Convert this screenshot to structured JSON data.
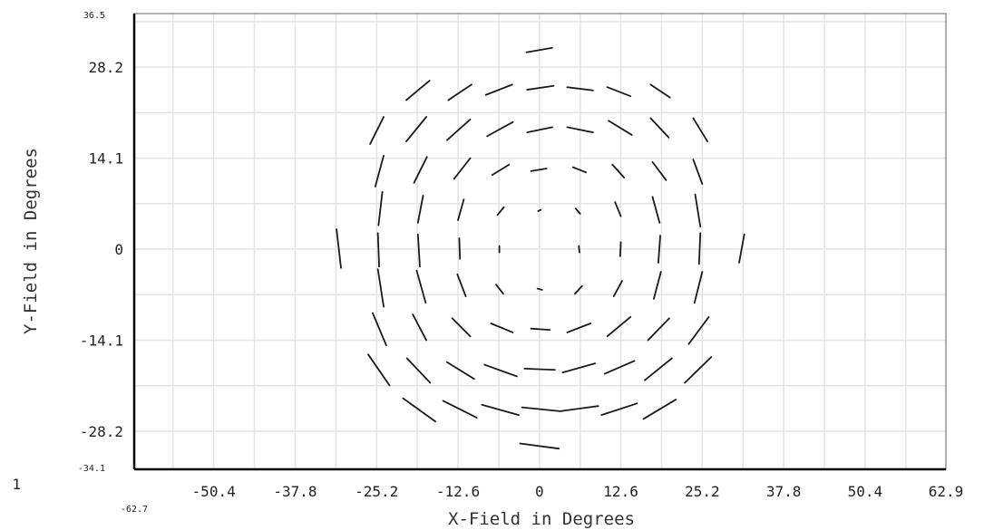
{
  "chart_data": {
    "type": "scatter",
    "mark": "field-orientation-segments",
    "title": "",
    "xlabel": "X-Field in Degrees",
    "ylabel": "Y-Field in Degrees",
    "xlim": [
      -62.7,
      62.9
    ],
    "ylim": [
      -34.1,
      36.5
    ],
    "x_ticks": [
      -50.4,
      -37.8,
      -25.2,
      -12.6,
      0,
      12.6,
      25.2,
      37.8,
      50.4,
      62.9
    ],
    "x_tick_labels": [
      "-50.4",
      "-37.8",
      "-25.2",
      "-12.6",
      "0",
      "12.6",
      "25.2",
      "37.8",
      "50.4",
      "62.9"
    ],
    "y_ticks": [
      28.2,
      14.1,
      0,
      -14.1,
      -28.2
    ],
    "y_tick_labels": [
      "28.2",
      "14.1",
      "0",
      "-14.1",
      "-28.2"
    ],
    "x_min_label": "-62.7",
    "x_cut_label": "1",
    "y_max_label": "36.5",
    "y_min_label": "-34.1",
    "grid": true,
    "segments": [
      {
        "x1": -2.0,
        "y1": 30.5,
        "x2": 2.0,
        "y2": 31.2
      },
      {
        "x1": -20.6,
        "y1": 23.1,
        "x2": -17.0,
        "y2": 26.1
      },
      {
        "x1": -14.1,
        "y1": 23.1,
        "x2": -10.5,
        "y2": 25.5
      },
      {
        "x1": -8.3,
        "y1": 23.9,
        "x2": -4.2,
        "y2": 25.5
      },
      {
        "x1": -1.9,
        "y1": 24.7,
        "x2": 2.2,
        "y2": 25.3
      },
      {
        "x1": 4.3,
        "y1": 25.1,
        "x2": 8.3,
        "y2": 24.6
      },
      {
        "x1": 10.5,
        "y1": 25.1,
        "x2": 14.1,
        "y2": 23.7
      },
      {
        "x1": 17.2,
        "y1": 25.5,
        "x2": 20.2,
        "y2": 23.5
      },
      {
        "x1": -26.2,
        "y1": 16.3,
        "x2": -24.1,
        "y2": 20.5
      },
      {
        "x1": -20.6,
        "y1": 16.7,
        "x2": -17.5,
        "y2": 20.5
      },
      {
        "x1": -14.3,
        "y1": 16.9,
        "x2": -10.7,
        "y2": 20.1
      },
      {
        "x1": -8.1,
        "y1": 17.5,
        "x2": -4.1,
        "y2": 19.7
      },
      {
        "x1": -1.9,
        "y1": 18.1,
        "x2": 2.0,
        "y2": 18.9
      },
      {
        "x1": 4.3,
        "y1": 18.9,
        "x2": 8.3,
        "y2": 18.1
      },
      {
        "x1": 10.7,
        "y1": 19.9,
        "x2": 14.3,
        "y2": 17.7
      },
      {
        "x1": 17.2,
        "y1": 20.3,
        "x2": 20.0,
        "y2": 17.3
      },
      {
        "x1": 23.8,
        "y1": 20.3,
        "x2": 26.0,
        "y2": 16.7
      },
      {
        "x1": -25.4,
        "y1": 9.7,
        "x2": -24.1,
        "y2": 14.5
      },
      {
        "x1": -19.4,
        "y1": 10.3,
        "x2": -17.4,
        "y2": 14.3
      },
      {
        "x1": -13.2,
        "y1": 10.9,
        "x2": -10.7,
        "y2": 14.1
      },
      {
        "x1": -7.3,
        "y1": 11.5,
        "x2": -4.7,
        "y2": 13.1
      },
      {
        "x1": -1.3,
        "y1": 12.1,
        "x2": 1.1,
        "y2": 12.5
      },
      {
        "x1": 5.2,
        "y1": 12.7,
        "x2": 7.2,
        "y2": 11.9
      },
      {
        "x1": 11.3,
        "y1": 13.1,
        "x2": 13.1,
        "y2": 11.1
      },
      {
        "x1": 17.5,
        "y1": 13.5,
        "x2": 19.6,
        "y2": 10.7
      },
      {
        "x1": 23.8,
        "y1": 13.9,
        "x2": 25.2,
        "y2": 10.1
      },
      {
        "x1": -24.9,
        "y1": 3.7,
        "x2": -24.3,
        "y2": 8.9
      },
      {
        "x1": -18.8,
        "y1": 4.1,
        "x2": -18.0,
        "y2": 8.3
      },
      {
        "x1": -12.6,
        "y1": 4.5,
        "x2": -11.7,
        "y2": 7.7
      },
      {
        "x1": -6.5,
        "y1": 5.3,
        "x2": -5.5,
        "y2": 6.5
      },
      {
        "x1": -0.2,
        "y1": 5.9,
        "x2": 0.2,
        "y2": 6.1
      },
      {
        "x1": 5.6,
        "y1": 6.3,
        "x2": 6.3,
        "y2": 5.5
      },
      {
        "x1": 11.7,
        "y1": 7.3,
        "x2": 12.6,
        "y2": 5.1
      },
      {
        "x1": 17.5,
        "y1": 8.1,
        "x2": 18.6,
        "y2": 4.1
      },
      {
        "x1": 24.1,
        "y1": 8.5,
        "x2": 24.9,
        "y2": 3.5
      },
      {
        "x1": -31.4,
        "y1": 3.1,
        "x2": -30.7,
        "y2": -2.9
      },
      {
        "x1": -25.0,
        "y1": 2.5,
        "x2": -24.8,
        "y2": -2.7
      },
      {
        "x1": -18.8,
        "y1": 2.3,
        "x2": -18.5,
        "y2": -2.7
      },
      {
        "x1": -12.4,
        "y1": 1.7,
        "x2": -12.3,
        "y2": -1.5
      },
      {
        "x1": -6.2,
        "y1": 0.5,
        "x2": -6.2,
        "y2": -0.5
      },
      {
        "x1": 6.1,
        "y1": 0.5,
        "x2": 6.2,
        "y2": -0.5
      },
      {
        "x1": 12.6,
        "y1": 1.1,
        "x2": 12.5,
        "y2": -1.1
      },
      {
        "x1": 18.7,
        "y1": 2.1,
        "x2": 18.4,
        "y2": -2.1
      },
      {
        "x1": 24.9,
        "y1": 2.5,
        "x2": 24.7,
        "y2": -2.3
      },
      {
        "x1": 31.7,
        "y1": 2.3,
        "x2": 30.9,
        "y2": -2.1
      },
      {
        "x1": -25.0,
        "y1": -3.1,
        "x2": -24.1,
        "y2": -8.9
      },
      {
        "x1": -19.0,
        "y1": -3.3,
        "x2": -17.6,
        "y2": -8.3
      },
      {
        "x1": -12.7,
        "y1": -3.9,
        "x2": -11.4,
        "y2": -7.3
      },
      {
        "x1": -6.7,
        "y1": -5.5,
        "x2": -5.6,
        "y2": -6.9
      },
      {
        "x1": -0.3,
        "y1": -6.1,
        "x2": 0.4,
        "y2": -6.3
      },
      {
        "x1": 5.5,
        "y1": -6.9,
        "x2": 6.6,
        "y2": -5.7
      },
      {
        "x1": 11.5,
        "y1": -7.3,
        "x2": 12.8,
        "y2": -4.9
      },
      {
        "x1": 17.7,
        "y1": -7.7,
        "x2": 18.8,
        "y2": -3.5
      },
      {
        "x1": 24.0,
        "y1": -8.3,
        "x2": 25.2,
        "y2": -3.5
      },
      {
        "x1": -25.8,
        "y1": -9.9,
        "x2": -23.7,
        "y2": -14.9
      },
      {
        "x1": -19.6,
        "y1": -10.1,
        "x2": -17.5,
        "y2": -14.1
      },
      {
        "x1": -13.5,
        "y1": -10.7,
        "x2": -10.7,
        "y2": -13.5
      },
      {
        "x1": -7.5,
        "y1": -11.5,
        "x2": -4.1,
        "y2": -12.9
      },
      {
        "x1": -1.3,
        "y1": -12.3,
        "x2": 1.6,
        "y2": -12.5
      },
      {
        "x1": 4.3,
        "y1": -12.9,
        "x2": 7.9,
        "y2": -11.5
      },
      {
        "x1": 10.5,
        "y1": -13.5,
        "x2": 14.1,
        "y2": -10.5
      },
      {
        "x1": 16.8,
        "y1": -14.1,
        "x2": 20.1,
        "y2": -10.7
      },
      {
        "x1": 23.1,
        "y1": -14.7,
        "x2": 26.2,
        "y2": -10.5
      },
      {
        "x1": -26.5,
        "y1": -16.3,
        "x2": -23.2,
        "y2": -21.1
      },
      {
        "x1": -20.5,
        "y1": -16.9,
        "x2": -16.9,
        "y2": -20.7
      },
      {
        "x1": -14.3,
        "y1": -17.5,
        "x2": -10.1,
        "y2": -20.1
      },
      {
        "x1": -8.5,
        "y1": -17.9,
        "x2": -3.5,
        "y2": -19.7
      },
      {
        "x1": -2.3,
        "y1": -18.5,
        "x2": 2.4,
        "y2": -18.7
      },
      {
        "x1": 3.6,
        "y1": -19.1,
        "x2": 8.6,
        "y2": -17.7
      },
      {
        "x1": 10.1,
        "y1": -19.3,
        "x2": 14.7,
        "y2": -17.3
      },
      {
        "x1": 16.3,
        "y1": -20.3,
        "x2": 20.5,
        "y2": -16.9
      },
      {
        "x1": 22.5,
        "y1": -20.7,
        "x2": 26.6,
        "y2": -16.7
      },
      {
        "x1": -21.1,
        "y1": -23.1,
        "x2": -16.1,
        "y2": -26.7
      },
      {
        "x1": -14.9,
        "y1": -23.5,
        "x2": -9.7,
        "y2": -26.1
      },
      {
        "x1": -8.9,
        "y1": -24.1,
        "x2": -3.2,
        "y2": -25.7
      },
      {
        "x1": -2.7,
        "y1": -24.5,
        "x2": 3.2,
        "y2": -25.1
      },
      {
        "x1": 3.2,
        "y1": -25.1,
        "x2": 9.1,
        "y2": -24.3
      },
      {
        "x1": 9.6,
        "y1": -25.7,
        "x2": 15.1,
        "y2": -23.9
      },
      {
        "x1": 16.1,
        "y1": -26.3,
        "x2": 21.1,
        "y2": -23.3
      },
      {
        "x1": -3.0,
        "y1": -30.1,
        "x2": 3.0,
        "y2": -30.9
      }
    ]
  }
}
